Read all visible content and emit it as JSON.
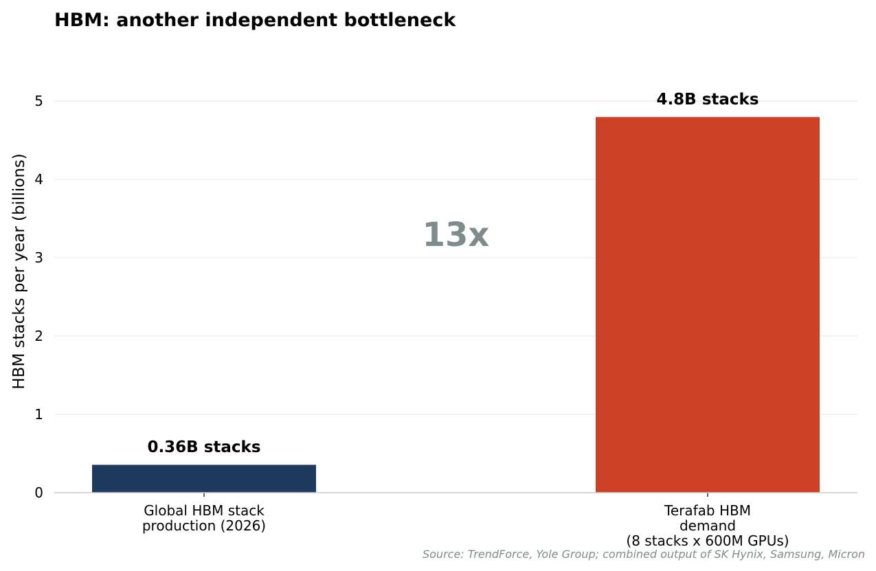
{
  "chart_data": {
    "type": "bar",
    "title": "HBM: another independent bottleneck",
    "xlabel": "",
    "ylabel": "HBM stacks per year (billions)",
    "ylim": [
      0,
      5.4
    ],
    "yticks": [
      0,
      1,
      2,
      3,
      4,
      5
    ],
    "grid": "horizontal",
    "categories": [
      [
        "Global HBM stack",
        "production (2026)"
      ],
      [
        "Terafab HBM",
        "demand",
        "(8 stacks x 600M GPUs)"
      ]
    ],
    "values": [
      0.36,
      4.8
    ],
    "colors": [
      "#1e3a5f",
      "#cc4125"
    ],
    "data_labels": [
      "0.36B stacks",
      "4.8B stacks"
    ],
    "annotations": [
      {
        "text": "13x",
        "x": 0.5,
        "y": 3.3,
        "color": "#7f8c8d"
      }
    ],
    "source_note": "Source: TrendForce, Yole Group; combined output of SK Hynix, Samsung, Micron",
    "source_color": "#7f8c8d",
    "grid_color": "#e6e6e6",
    "axis_color": "#cccccc"
  }
}
